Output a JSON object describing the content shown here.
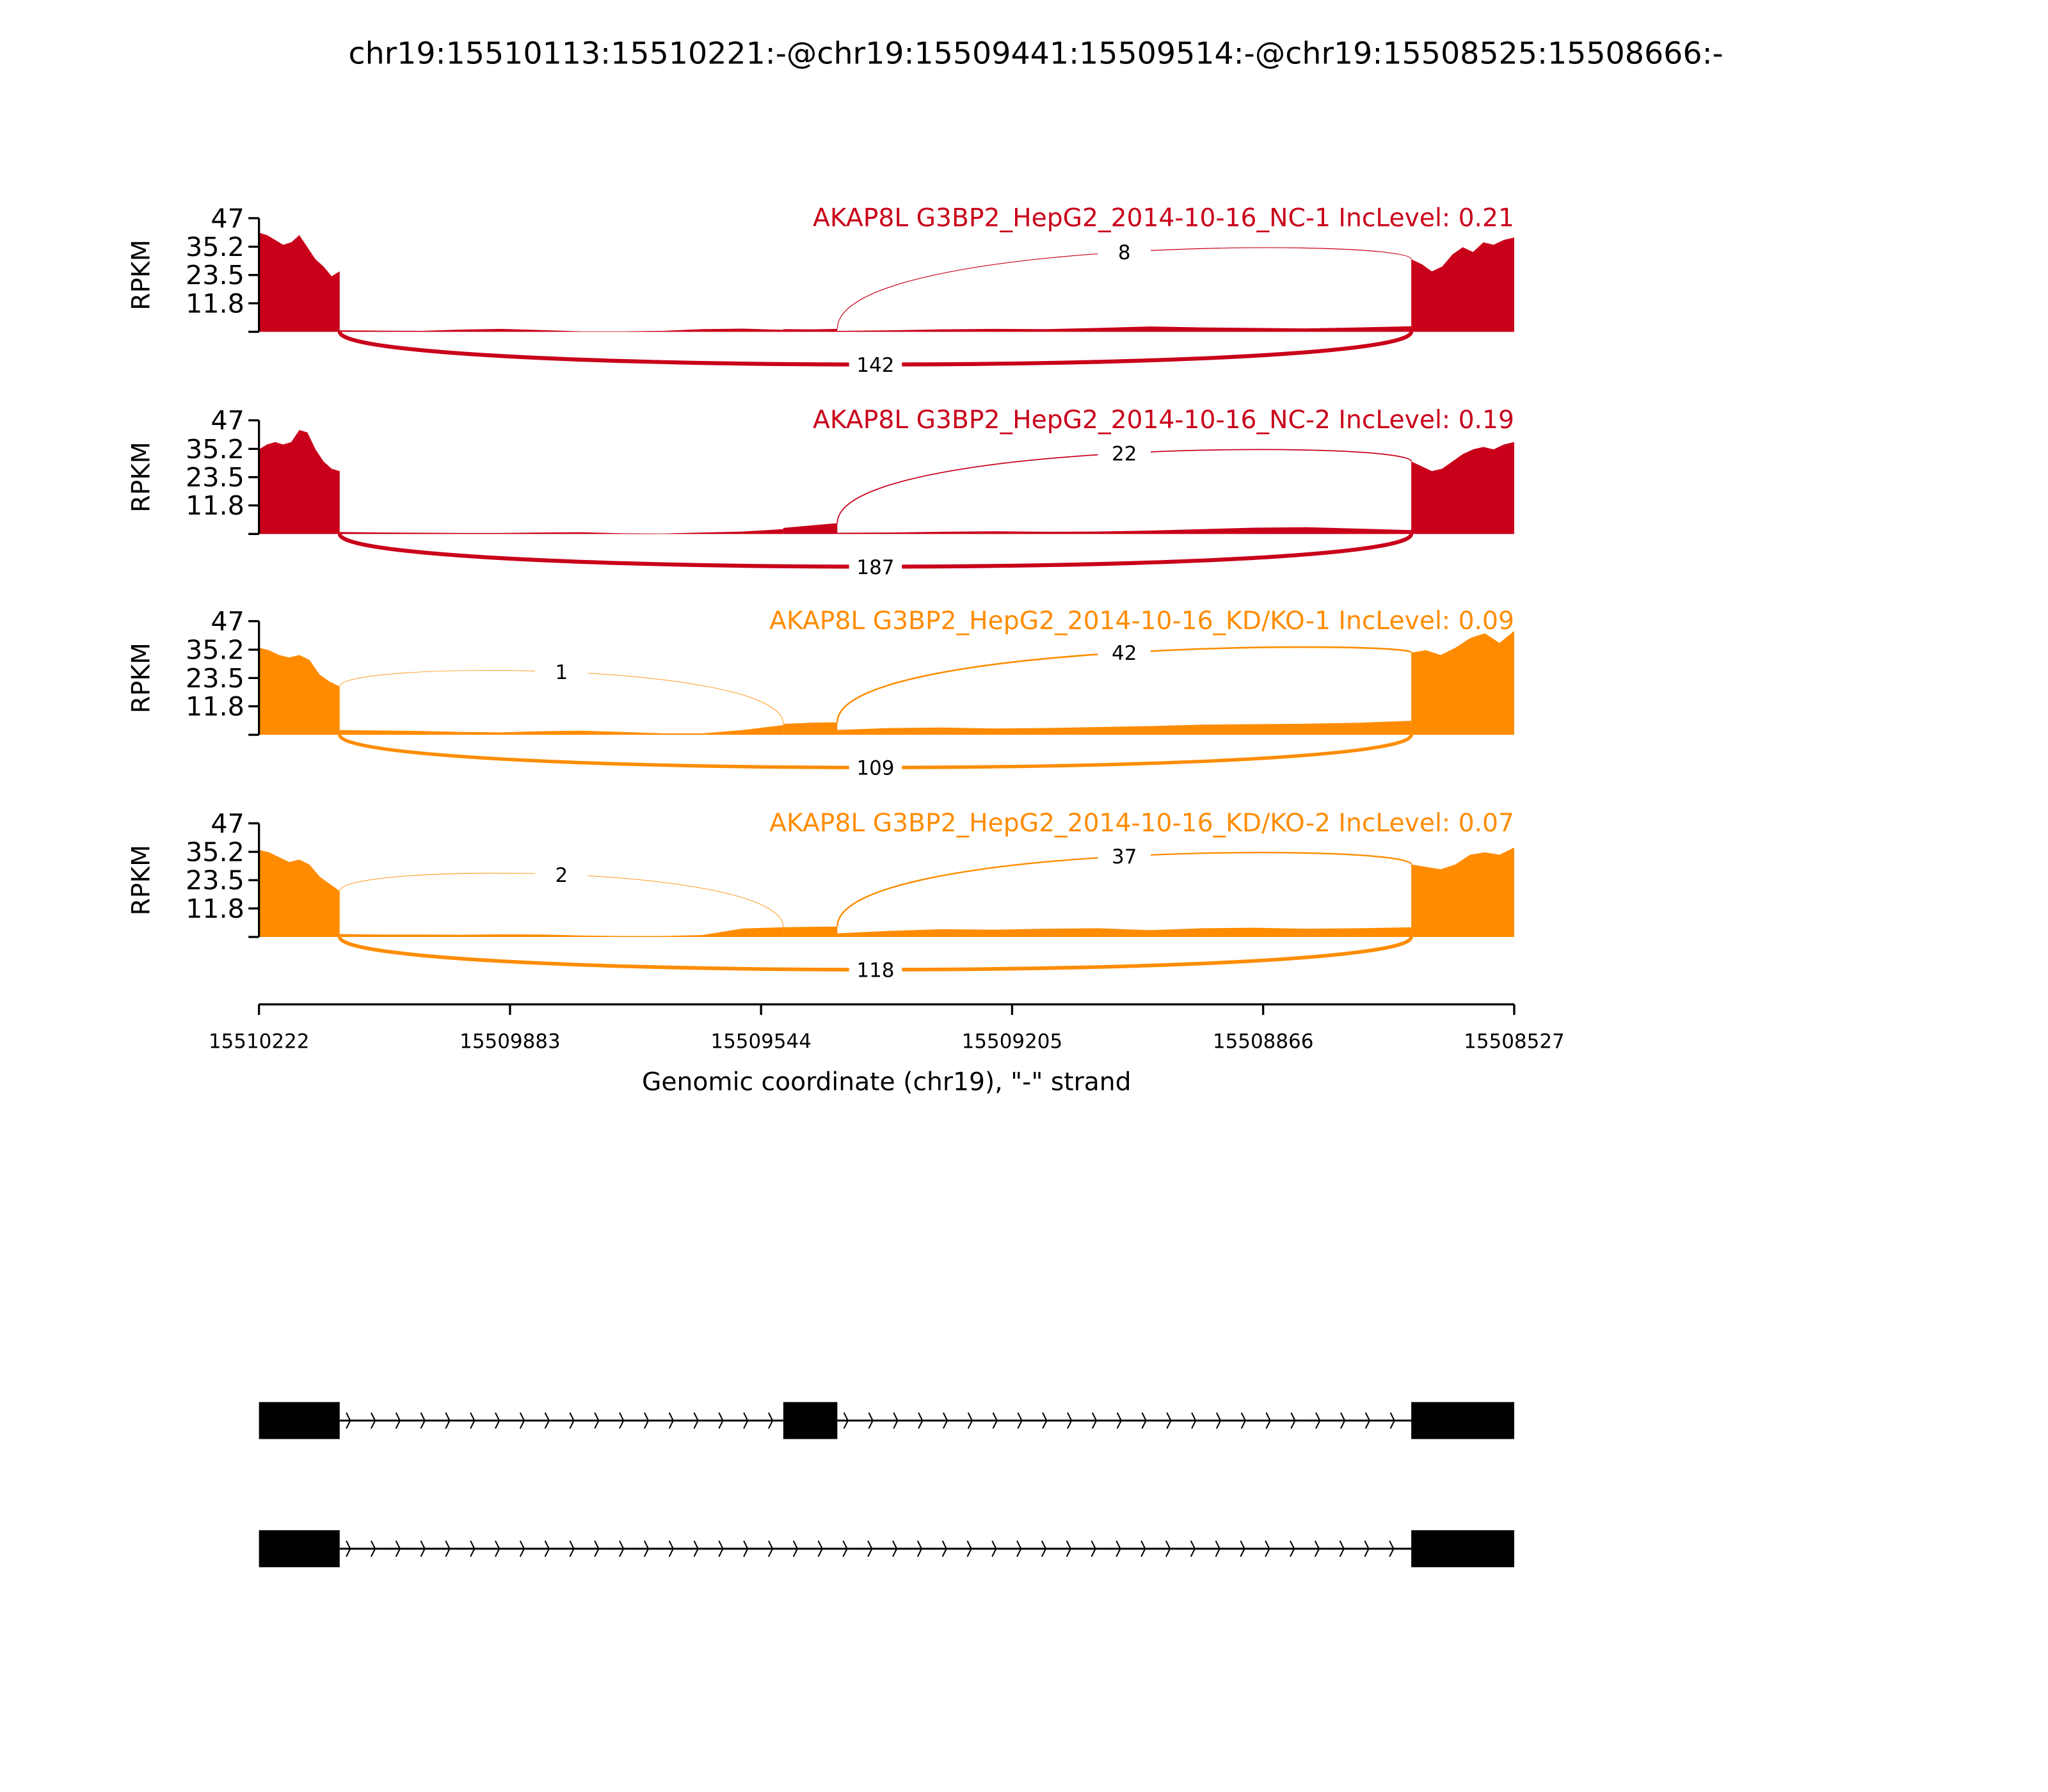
{
  "chart_data": {
    "type": "area",
    "title": "chr19:15510113:15510221:-@chr19:15509441:15509514:-@chr19:15508525:15508666:-",
    "xlabel": "Genomic coordinate (chr19), \"-\" strand",
    "ylabel": "RPKM",
    "xlim": [
      15510222,
      15508527
    ],
    "x_ticks": [
      "15510222",
      "15509883",
      "15509544",
      "15509205",
      "15508866",
      "15508527"
    ],
    "x_tick_values": [
      15510222,
      15509883,
      15509544,
      15509205,
      15508866,
      15508527
    ],
    "ylim": [
      0,
      47
    ],
    "y_ticks": [
      "47",
      "35.2",
      "23.5",
      "11.8"
    ],
    "y_tick_values": [
      47,
      35.2,
      23.5,
      11.8
    ],
    "exons": [
      {
        "start": 15510222,
        "end": 15510113
      },
      {
        "start": 15509514,
        "end": 15509441
      },
      {
        "start": 15508666,
        "end": 15508527
      }
    ],
    "colors": {
      "NC": "#c9001a",
      "KD": "#ff8c00"
    },
    "samples": [
      {
        "label": "AKAP8L G3BP2_HepG2_2014-10-16_NC-1 IncLevel: 0.21",
        "group": "NC",
        "coverage": {
          "exon1": [
            41,
            40,
            38,
            36,
            37,
            40,
            35,
            30,
            27,
            23,
            25
          ],
          "intron1": [
            0.6,
            0.5,
            0.4,
            0.9,
            1.2,
            0.7,
            0.2,
            0.2,
            0.4,
            1.1,
            1.3,
            0.8
          ],
          "exon2": [
            1.1,
            1.0,
            1.2
          ],
          "intron2": [
            0.4,
            0.6,
            1.0,
            1.2,
            1.1,
            1.6,
            2.2,
            1.8,
            1.6,
            1.4,
            1.8,
            2.3
          ],
          "exon3": [
            30,
            28,
            25,
            27,
            32,
            35,
            33,
            37,
            36,
            38,
            39
          ]
        },
        "junctions": [
          {
            "from": 2,
            "to": 3,
            "count": 8,
            "side": "above"
          },
          {
            "from": 1,
            "to": 3,
            "count": 142,
            "side": "below"
          }
        ]
      },
      {
        "label": "AKAP8L G3BP2_HepG2_2014-10-16_NC-2 IncLevel: 0.19",
        "group": "NC",
        "coverage": {
          "exon1": [
            35,
            37,
            38,
            37,
            38,
            43,
            42,
            35,
            30,
            27,
            26
          ],
          "intron1": [
            0.8,
            0.6,
            0.5,
            0.4,
            0.4,
            0.6,
            0.7,
            0.3,
            0.2,
            0.6,
            1.0,
            2.0
          ],
          "exon2": [
            2.5,
            3.5,
            4.5
          ],
          "intron2": [
            0.5,
            0.6,
            0.9,
            1.1,
            0.9,
            1.0,
            1.4,
            2.0,
            2.6,
            2.8,
            2.2,
            1.6
          ],
          "exon3": [
            30,
            28,
            26,
            27,
            30,
            33,
            35,
            36,
            35,
            37,
            38
          ]
        },
        "junctions": [
          {
            "from": 2,
            "to": 3,
            "count": 22,
            "side": "above"
          },
          {
            "from": 1,
            "to": 3,
            "count": 187,
            "side": "below"
          }
        ]
      },
      {
        "label": "AKAP8L G3BP2_HepG2_2014-10-16_KD/KO-1 IncLevel: 0.09",
        "group": "KD",
        "coverage": {
          "exon1": [
            36,
            35,
            33,
            32,
            33,
            31,
            25,
            22,
            20
          ],
          "intron1": [
            2.0,
            1.8,
            1.6,
            1.2,
            1.0,
            1.5,
            1.7,
            1.2,
            0.6,
            0.6,
            2.0,
            4.0
          ],
          "exon2": [
            4.5,
            5.0,
            5.2
          ],
          "intron2": [
            2.0,
            2.8,
            3.0,
            2.6,
            2.8,
            3.2,
            3.6,
            4.2,
            4.4,
            4.6,
            5.0,
            5.8
          ],
          "exon3": [
            34,
            35,
            33,
            36,
            40,
            42,
            38,
            43
          ]
        },
        "junctions": [
          {
            "from": 1,
            "to": 2,
            "count": 1,
            "side": "above"
          },
          {
            "from": 2,
            "to": 3,
            "count": 42,
            "side": "above"
          },
          {
            "from": 1,
            "to": 3,
            "count": 109,
            "side": "below"
          }
        ]
      },
      {
        "label": "AKAP8L G3BP2_HepG2_2014-10-16_KD/KO-2 IncLevel: 0.07",
        "group": "KD",
        "coverage": {
          "exon1": [
            36,
            35,
            33,
            31,
            32,
            30,
            25,
            22,
            19
          ],
          "intron1": [
            1.2,
            1.0,
            1.0,
            0.9,
            1.1,
            1.0,
            0.6,
            0.4,
            0.4,
            0.8,
            3.5,
            4.0
          ],
          "exon2": [
            4.0,
            4.2,
            4.3
          ],
          "intron2": [
            1.5,
            2.5,
            3.2,
            3.0,
            3.4,
            3.6,
            2.8,
            3.6,
            3.8,
            3.4,
            3.6,
            4.0
          ],
          "exon3": [
            30,
            29,
            28,
            30,
            34,
            35,
            34,
            37
          ]
        },
        "junctions": [
          {
            "from": 1,
            "to": 2,
            "count": 2,
            "side": "above"
          },
          {
            "from": 2,
            "to": 3,
            "count": 37,
            "side": "above"
          },
          {
            "from": 1,
            "to": 3,
            "count": 118,
            "side": "below"
          }
        ]
      }
    ],
    "gene_models": [
      {
        "exons": [
          1,
          2,
          3
        ]
      },
      {
        "exons": [
          1,
          3
        ]
      }
    ]
  }
}
